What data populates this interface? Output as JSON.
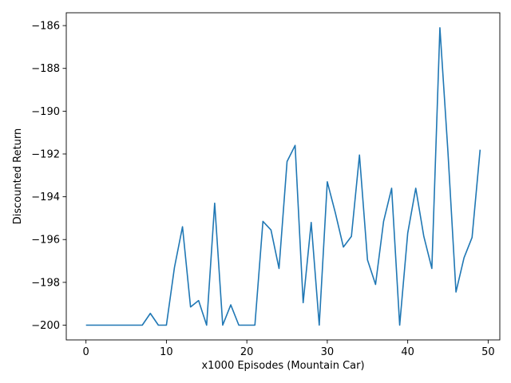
{
  "chart_data": {
    "type": "line",
    "title": "",
    "xlabel": "x1000 Episodes (Mountain Car)",
    "ylabel": "Discounted Return",
    "xlim": [
      -2.45,
      51.45
    ],
    "ylim": [
      -200.69,
      -185.4
    ],
    "grid": false,
    "x_ticks": [
      0,
      10,
      20,
      30,
      40,
      50
    ],
    "x_tick_labels": [
      "0",
      "10",
      "20",
      "30",
      "40",
      "50"
    ],
    "y_ticks": [
      -200,
      -198,
      -196,
      -194,
      -192,
      -190,
      -188,
      -186
    ],
    "y_tick_labels": [
      "−200",
      "−198",
      "−196",
      "−194",
      "−192",
      "−190",
      "−188",
      "−186"
    ],
    "series": [
      {
        "color": "#1f77b4",
        "x": [
          0,
          1,
          2,
          3,
          4,
          5,
          6,
          7,
          8,
          9,
          10,
          11,
          12,
          13,
          14,
          15,
          16,
          17,
          18,
          19,
          20,
          21,
          22,
          23,
          24,
          25,
          26,
          27,
          28,
          29,
          30,
          31,
          32,
          33,
          34,
          35,
          36,
          37,
          38,
          39,
          40,
          41,
          42,
          43,
          44,
          45,
          46,
          47,
          48,
          49
        ],
        "y": [
          -200,
          -200,
          -200,
          -200,
          -200,
          -200,
          -200,
          -200,
          -199.45,
          -200,
          -200,
          -197.3,
          -195.4,
          -199.15,
          -198.85,
          -200,
          -194.3,
          -200,
          -199.05,
          -200,
          -200,
          -200,
          -195.15,
          -195.55,
          -197.35,
          -192.35,
          -191.6,
          -198.95,
          -195.2,
          -200,
          -193.3,
          -194.75,
          -196.35,
          -195.85,
          -192.05,
          -196.95,
          -198.1,
          -195.15,
          -193.6,
          -200,
          -195.7,
          -193.6,
          -195.85,
          -197.35,
          -186.1,
          -191.9,
          -198.45,
          -196.85,
          -195.9,
          -191.8
        ]
      }
    ]
  }
}
